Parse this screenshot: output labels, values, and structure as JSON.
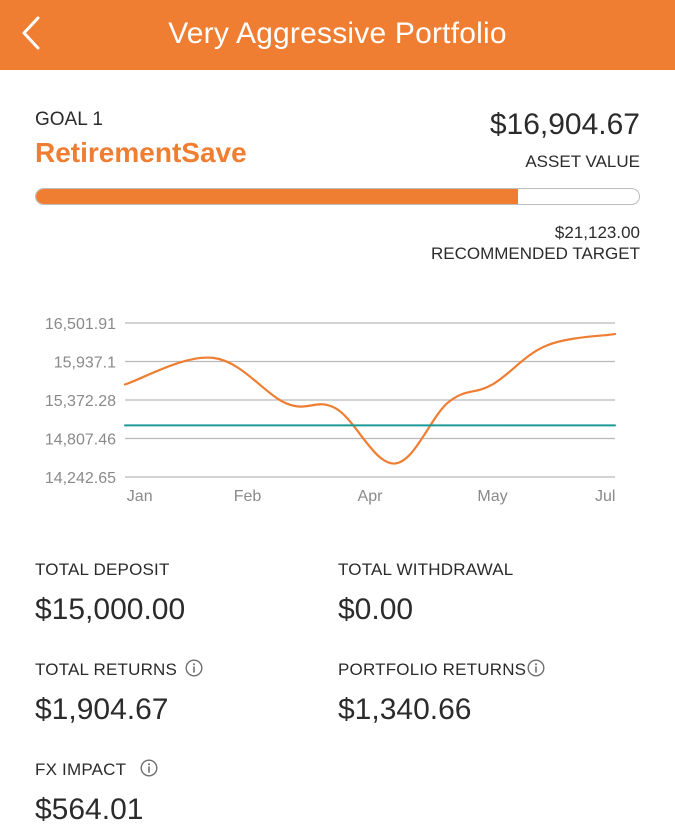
{
  "header": {
    "title": "Very Aggressive Portfolio",
    "back_icon": "chevron-left-icon"
  },
  "goal": {
    "label": "GOAL 1",
    "name": "RetirementSave",
    "asset_value": "$16,904.67",
    "asset_caption": "ASSET VALUE",
    "target_value": "$21,123.00",
    "target_caption": "RECOMMENDED TARGET",
    "progress_fraction": 0.8
  },
  "chart_data": {
    "type": "line",
    "x_ticks": [
      "Jan",
      "Feb",
      "Apr",
      "May",
      "Jul"
    ],
    "y_ticks": [
      "16,501.91",
      "15,937.1",
      "15,372.28",
      "14,807.46",
      "14,242.65"
    ],
    "ylim": [
      14242.65,
      16501.91
    ],
    "series": [
      {
        "values": [
          {
            "x": 0.0,
            "y": 15600
          },
          {
            "x": 0.18,
            "y": 15990
          },
          {
            "x": 0.33,
            "y": 15320
          },
          {
            "x": 0.43,
            "y": 15250
          },
          {
            "x": 0.55,
            "y": 14440
          },
          {
            "x": 0.66,
            "y": 15340
          },
          {
            "x": 0.75,
            "y": 15600
          },
          {
            "x": 0.86,
            "y": 16170
          },
          {
            "x": 1.0,
            "y": 16340
          }
        ],
        "color": "#ef7d32"
      },
      {
        "values": [
          {
            "x": 0.0,
            "y": 15000
          },
          {
            "x": 1.0,
            "y": 15000
          }
        ],
        "color": "#1a9a96"
      }
    ],
    "grid": true
  },
  "stats": {
    "total_deposit_label": "TOTAL DEPOSIT",
    "total_deposit_value": "$15,000.00",
    "total_withdrawal_label": "TOTAL WITHDRAWAL",
    "total_withdrawal_value": "$0.00",
    "total_returns_label": "TOTAL RETURNS",
    "total_returns_value": "$1,904.67",
    "portfolio_returns_label": "PORTFOLIO RETURNS",
    "portfolio_returns_value": "$1,340.66",
    "fx_impact_label": "FX IMPACT",
    "fx_impact_value": "$564.01",
    "info_icon": "info-icon"
  },
  "colors": {
    "accent": "#ef7d32",
    "baseline": "#1a9a96",
    "text": "#2b2b2b"
  }
}
